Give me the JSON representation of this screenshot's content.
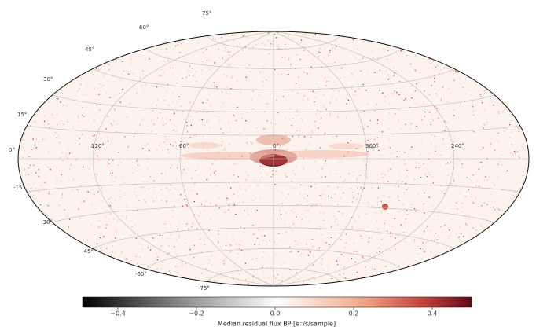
{
  "map": {
    "lat_labels": [
      "75°",
      "60°",
      "45°",
      "30°",
      "15°",
      "0°",
      "-15°",
      "-30°",
      "-45°",
      "-60°",
      "-75°"
    ],
    "lon_labels": [
      "120°",
      "60°",
      "0°",
      "300°",
      "240°"
    ]
  },
  "colorbar": {
    "label": "Median residual flux BP [e⁻/s/sample]",
    "range": [
      -0.5,
      0.5
    ],
    "ticks": [
      {
        "value": -0.4,
        "label": "−0.4"
      },
      {
        "value": -0.2,
        "label": "−0.2"
      },
      {
        "value": 0.0,
        "label": "0.0"
      },
      {
        "value": 0.2,
        "label": "0.2"
      },
      {
        "value": 0.4,
        "label": "0.4"
      }
    ]
  }
}
